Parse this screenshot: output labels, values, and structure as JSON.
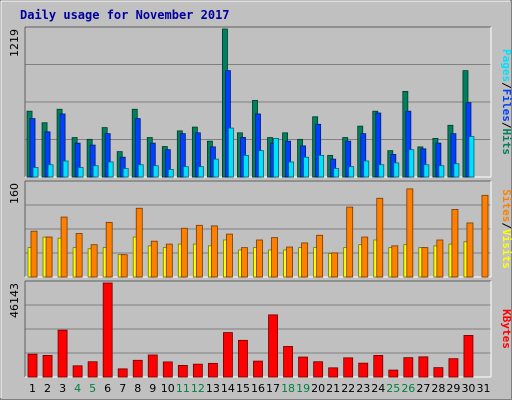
{
  "chart_data": {
    "type": "bar",
    "title": "Daily usage for November 2017",
    "categories": [
      "1",
      "2",
      "3",
      "4",
      "5",
      "6",
      "7",
      "8",
      "9",
      "10",
      "11",
      "12",
      "13",
      "14",
      "15",
      "16",
      "17",
      "18",
      "19",
      "20",
      "21",
      "22",
      "23",
      "24",
      "25",
      "26",
      "27",
      "28",
      "29",
      "30",
      "31"
    ],
    "weekend_days": [
      "4",
      "5",
      "11",
      "12",
      "18",
      "19",
      "25",
      "26"
    ],
    "panels": [
      {
        "id": "hits-files-pages",
        "max_label": "1219",
        "ylim": [
          0,
          1219
        ],
        "axis_labels": [
          "Pages",
          "/",
          "Files",
          "/",
          "Hits"
        ],
        "series": [
          {
            "name": "Hits",
            "color": "#00805c",
            "values": [
              542,
              447,
              558,
              325,
              310,
              407,
              209,
              558,
              325,
              251,
              380,
              411,
              295,
              1219,
              364,
              631,
              325,
              364,
              310,
              496,
              178,
              325,
              419,
              542,
              217,
              705,
              248,
              318,
              426,
              876,
              0
            ]
          },
          {
            "name": "Files",
            "color": "#0040ff",
            "values": [
              481,
              372,
              519,
              279,
              263,
              357,
              163,
              481,
              279,
              225,
              357,
              364,
              248,
              876,
              326,
              519,
              279,
              295,
              256,
              434,
              147,
              295,
              357,
              527,
              186,
              542,
              232,
              279,
              357,
              612,
              0
            ]
          },
          {
            "name": "Pages",
            "color": "#00e0ff",
            "values": [
              78,
              101,
              132,
              78,
              93,
              124,
              70,
              101,
              93,
              62,
              85,
              85,
              147,
              403,
              178,
              217,
              318,
              124,
              163,
              178,
              70,
              85,
              132,
              101,
              116,
              225,
              101,
              93,
              109,
              333,
              0
            ]
          }
        ]
      },
      {
        "id": "sites-visits",
        "max_label": "160",
        "ylim": [
          0,
          160
        ],
        "axis_labels": [
          "Sites",
          "/",
          "Visits"
        ],
        "series": [
          {
            "name": "Visits",
            "color": "#ffff00",
            "values": [
              50,
              68,
              66,
              50,
              48,
              50,
              38,
              68,
              53,
              50,
              56,
              56,
              53,
              63,
              46,
              50,
              46,
              46,
              50,
              50,
              40,
              50,
              55,
              63,
              50,
              55,
              50,
              53,
              56,
              60,
              0
            ]
          },
          {
            "name": "Sites",
            "color": "#ff8000",
            "values": [
              78,
              68,
              102,
              74,
              55,
              93,
              38,
              117,
              61,
              56,
              83,
              88,
              87,
              73,
              50,
              63,
              67,
              51,
              58,
              71,
              41,
              119,
              68,
              134,
              53,
              150,
              50,
              63,
              115,
              92,
              139
            ]
          }
        ]
      },
      {
        "id": "kbytes",
        "max_label": "46143",
        "ylim": [
          0,
          46143
        ],
        "axis_labels": [
          "KBytes"
        ],
        "series": [
          {
            "name": "KBytes",
            "color": "#ff0000",
            "values": [
              11200,
              10600,
              23000,
              5500,
              7500,
              46143,
              4000,
              8200,
              10800,
              7400,
              5700,
              6300,
              6700,
              21800,
              18000,
              7800,
              30500,
              15000,
              9800,
              7500,
              4500,
              9400,
              6800,
              10600,
              3400,
              9500,
              9900,
              4600,
              9000,
              20400,
              0
            ]
          }
        ]
      }
    ]
  }
}
